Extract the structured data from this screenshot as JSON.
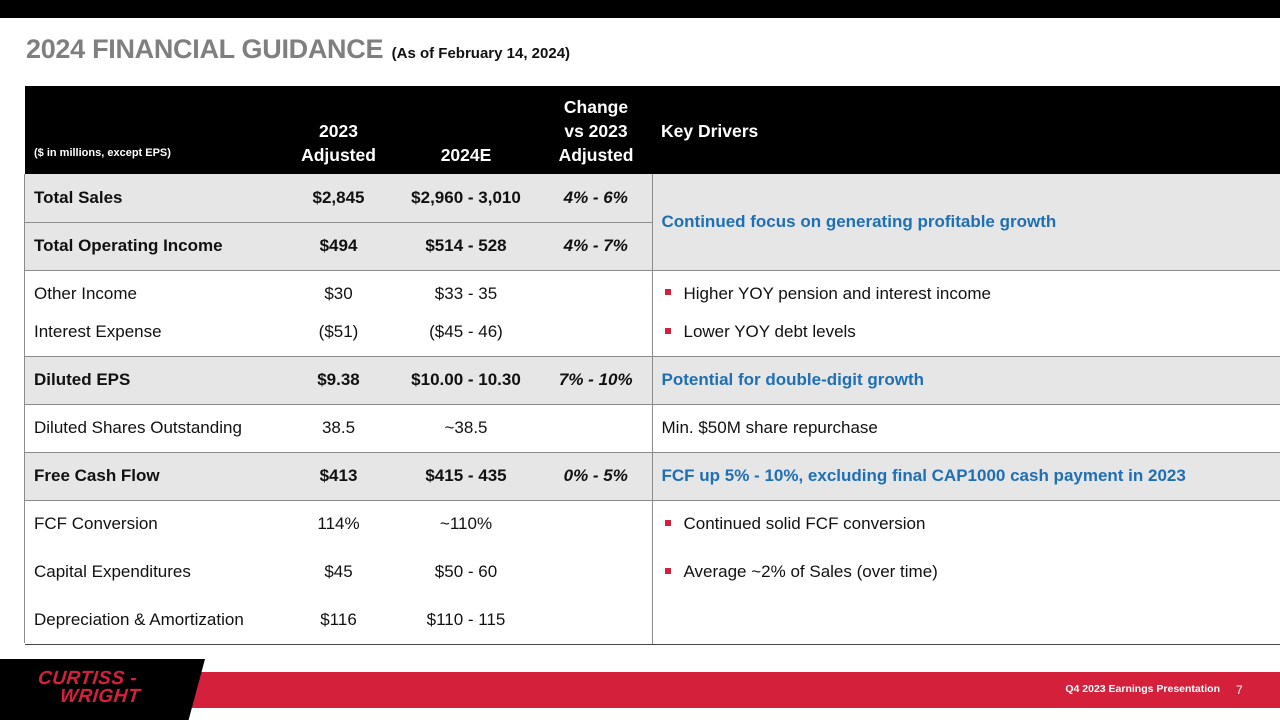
{
  "title": {
    "main": "2024 FINANCIAL GUIDANCE",
    "sub": "(As of February 14, 2024)"
  },
  "table": {
    "headers": {
      "units": "($ in millions, except EPS)",
      "col_2023": "2023 Adjusted",
      "col_2024": "2024E",
      "col_change": "Change vs 2023 Adjusted",
      "col_drivers": "Key Drivers"
    },
    "rows": [
      {
        "label": "Total Sales",
        "y2023": "$2,845",
        "y2024": "$2,960 - 3,010",
        "change": "4% - 6%"
      },
      {
        "label": "Total Operating Income",
        "y2023": "$494",
        "y2024": "$514 - 528",
        "change": "4% - 7%"
      },
      {
        "label": "Other Income",
        "y2023": "$30",
        "y2024": "$33 - 35",
        "change": ""
      },
      {
        "label": "Interest Expense",
        "y2023": "($51)",
        "y2024": "($45 - 46)",
        "change": ""
      },
      {
        "label": "Diluted EPS",
        "y2023": "$9.38",
        "y2024": "$10.00 - 10.30",
        "change": "7% - 10%"
      },
      {
        "label": "Diluted Shares Outstanding",
        "y2023": "38.5",
        "y2024": "~38.5",
        "change": ""
      },
      {
        "label": "Free Cash Flow",
        "y2023": "$413",
        "y2024": "$415 - 435",
        "change": "0% - 5%"
      },
      {
        "label": "FCF Conversion",
        "y2023": "114%",
        "y2024": "~110%",
        "change": ""
      },
      {
        "label": "Capital Expenditures",
        "y2023": "$45",
        "y2024": "$50 - 60",
        "change": ""
      },
      {
        "label": "Depreciation & Amortization",
        "y2023": "$116",
        "y2024": "$110 - 115",
        "change": ""
      }
    ],
    "drivers": {
      "sales_oi": "Continued focus on generating profitable growth",
      "other_income": "Higher YOY pension and interest income",
      "interest": "Lower YOY debt levels",
      "eps": "Potential for double-digit growth",
      "shares": "Min. $50M share repurchase",
      "fcf": "FCF up 5% - 10%, excluding final CAP1000 cash payment in 2023",
      "fcf_conversion": "Continued solid FCF conversion",
      "capex": "Average ~2% of Sales (over time)"
    }
  },
  "footer": {
    "logo_line1": "CURTISS -",
    "logo_line2": "WRIGHT",
    "presentation": "Q4 2023 Earnings Presentation",
    "page": "7"
  },
  "colors": {
    "accent_red": "#d5203b",
    "driver_blue": "#1f6fb5",
    "shade": "#e6e6e6",
    "title_gray": "#7f7f7f"
  }
}
